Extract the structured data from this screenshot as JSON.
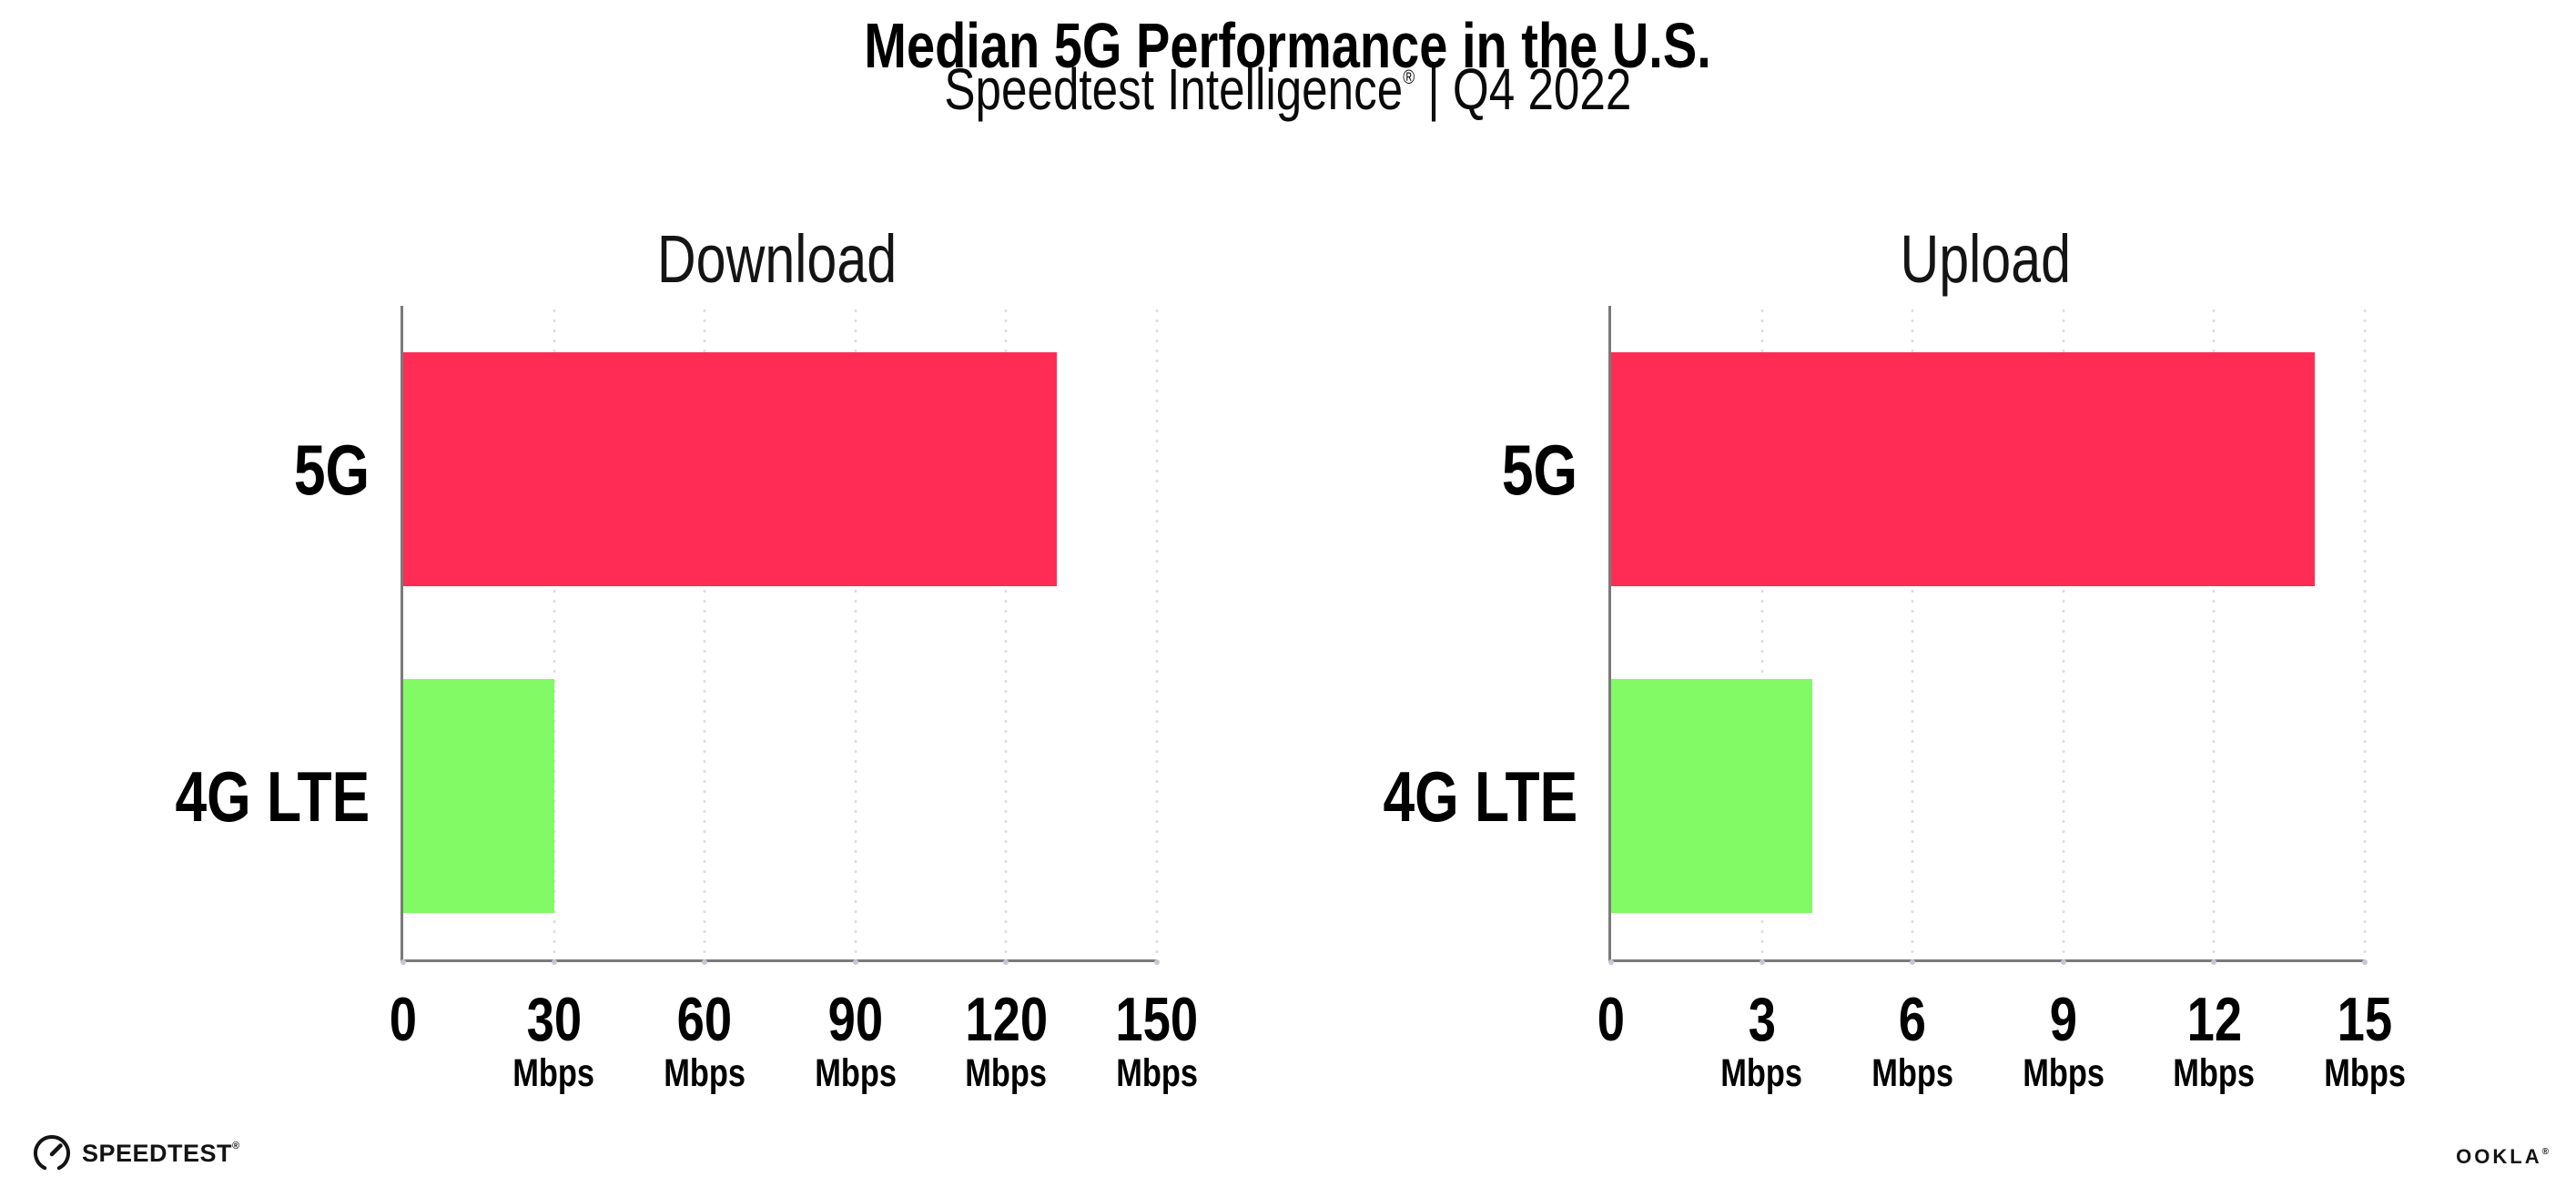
{
  "header": {
    "title": "Median 5G Performance in the U.S.",
    "subtitle_brand": "Speedtest Intelligence",
    "subtitle_registered": "®",
    "subtitle_rest": " | Q4 2022"
  },
  "chart_data": [
    {
      "type": "bar",
      "orientation": "horizontal",
      "title": "Download",
      "categories": [
        "5G",
        "4G LTE"
      ],
      "values": [
        130,
        30
      ],
      "unit": "Mbps",
      "xlim": [
        0,
        150
      ],
      "xticks": [
        0,
        30,
        60,
        90,
        120,
        150
      ],
      "bar_colors": [
        "#FF2D55",
        "#82FA66"
      ],
      "grid": "dotted vertical gridlines at each tick",
      "legend": "none"
    },
    {
      "type": "bar",
      "orientation": "horizontal",
      "title": "Upload",
      "categories": [
        "5G",
        "4G LTE"
      ],
      "values": [
        14,
        4
      ],
      "unit": "Mbps",
      "xlim": [
        0,
        15
      ],
      "xticks": [
        0,
        3,
        6,
        9,
        12,
        15
      ],
      "bar_colors": [
        "#FF2D55",
        "#82FA66"
      ],
      "grid": "dotted vertical gridlines at each tick",
      "legend": "none"
    }
  ],
  "footer": {
    "speedtest_label": "SPEEDTEST",
    "speedtest_registered": "®",
    "speedtest_icon": "gauge-icon",
    "ookla_label": "OOKLA",
    "ookla_registered": "®"
  },
  "colors": {
    "bar_5g": "#FF2D55",
    "bar_4g_lte": "#82FA66",
    "axis": "#7A7A7A",
    "gridline_dots": "#DEDEE9",
    "text": "#111111",
    "background": "#FFFFFF"
  }
}
